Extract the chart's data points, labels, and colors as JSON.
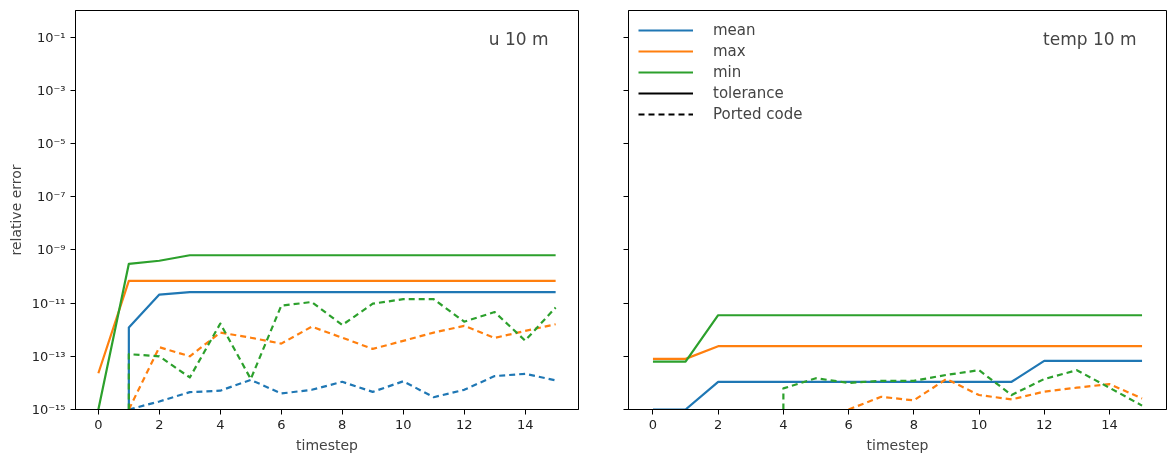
{
  "chart_data": [
    {
      "type": "line",
      "title": "u 10 m",
      "xlabel": "timestep",
      "ylabel": "relative error",
      "log": "y",
      "grid": false,
      "legend": false,
      "xlim": [
        -0.75,
        15.75
      ],
      "xticks": [
        0,
        2,
        4,
        6,
        8,
        10,
        12,
        14
      ],
      "ylim": [
        1e-15,
        1
      ],
      "yticks": [
        {
          "value": 1e-15,
          "label": "10⁻¹⁵"
        },
        {
          "value": 1e-13,
          "label": "10⁻¹³"
        },
        {
          "value": 1e-11,
          "label": "10⁻¹¹"
        },
        {
          "value": 1e-09,
          "label": "10⁻⁹"
        },
        {
          "value": 1e-07,
          "label": "10⁻⁷"
        },
        {
          "value": 1e-05,
          "label": "10⁻⁵"
        },
        {
          "value": 0.001,
          "label": "10⁻³"
        },
        {
          "value": 0.1,
          "label": "10⁻¹"
        }
      ],
      "series": [
        {
          "color": "#1f77b4",
          "line_style": "solid",
          "x": [
            1,
            1,
            2,
            3,
            4,
            5,
            6,
            7,
            8,
            9,
            10,
            11,
            12,
            13,
            14,
            15
          ],
          "values": [
            1e-15,
            1.2e-12,
            2.1e-11,
            2.6e-11,
            2.6e-11,
            2.6e-11,
            2.6e-11,
            2.6e-11,
            2.6e-11,
            2.6e-11,
            2.6e-11,
            2.6e-11,
            2.6e-11,
            2.6e-11,
            2.6e-11,
            2.6e-11
          ]
        },
        {
          "color": "#ff7f0e",
          "line_style": "solid",
          "x": [
            0,
            1,
            2,
            3,
            4,
            5,
            6,
            7,
            8,
            9,
            10,
            11,
            12,
            13,
            14,
            15
          ],
          "values": [
            2.3e-14,
            6.8e-11,
            6.8e-11,
            6.8e-11,
            6.8e-11,
            6.8e-11,
            6.8e-11,
            6.8e-11,
            6.8e-11,
            6.8e-11,
            6.8e-11,
            6.8e-11,
            6.8e-11,
            6.8e-11,
            6.8e-11,
            6.8e-11
          ]
        },
        {
          "color": "#2ca02c",
          "line_style": "solid",
          "x": [
            0,
            1,
            2,
            3,
            4,
            5,
            6,
            7,
            8,
            9,
            10,
            11,
            12,
            13,
            14,
            15
          ],
          "values": [
            1e-15,
            3e-10,
            3.9e-10,
            6.3e-10,
            6.3e-10,
            6.3e-10,
            6.3e-10,
            6.3e-10,
            6.3e-10,
            6.3e-10,
            6.3e-10,
            6.3e-10,
            6.3e-10,
            6.3e-10,
            6.3e-10,
            6.3e-10
          ]
        },
        {
          "color": "#1f77b4",
          "line_style": "dashed",
          "x": [
            1,
            2,
            3,
            4,
            5,
            6,
            7,
            8,
            9,
            10,
            11,
            12,
            13,
            14,
            15
          ],
          "values": [
            1e-15,
            2e-15,
            4.5e-15,
            5.1e-15,
            1.3e-14,
            4e-15,
            5.5e-15,
            1.1e-14,
            4.6e-15,
            1.15e-14,
            2.9e-15,
            5.5e-15,
            1.8e-14,
            2.2e-14,
            1.25e-14
          ]
        },
        {
          "color": "#ff7f0e",
          "line_style": "dashed",
          "x": [
            1,
            2,
            3,
            4,
            5,
            6,
            7,
            8,
            9,
            10,
            11,
            12,
            13,
            14,
            15
          ],
          "values": [
            1e-15,
            2.2e-13,
            1e-13,
            7.8e-13,
            5e-13,
            3e-13,
            1.3e-12,
            5e-13,
            1.9e-13,
            3.8e-13,
            7.8e-13,
            1.4e-12,
            4.9e-13,
            9e-13,
            1.6e-12
          ]
        },
        {
          "color": "#2ca02c",
          "line_style": "dashed",
          "x": [
            1,
            1,
            2,
            3,
            4,
            5,
            6,
            7,
            8,
            9,
            10,
            11,
            12,
            13,
            14,
            15
          ],
          "values": [
            1e-15,
            1.2e-13,
            1e-13,
            1.6e-14,
            1.7e-12,
            1.4e-14,
            8e-12,
            1.1e-11,
            1.5e-12,
            9.5e-12,
            1.4e-11,
            1.4e-11,
            2e-12,
            4.6e-12,
            3.9e-13,
            6.8e-12
          ]
        }
      ]
    },
    {
      "type": "line",
      "title": "temp 10 m",
      "xlabel": "timestep",
      "log": "y",
      "grid": false,
      "legend": "top left",
      "tick_labels": "x",
      "xlim": [
        -0.75,
        15.75
      ],
      "xticks": [
        0,
        2,
        4,
        6,
        8,
        10,
        12,
        14
      ],
      "ylim": [
        1e-15,
        1
      ],
      "yticks": [
        {
          "value": 1e-15,
          "label": null
        },
        {
          "value": 1e-13,
          "label": null
        },
        {
          "value": 1e-11,
          "label": null
        },
        {
          "value": 1e-09,
          "label": null
        },
        {
          "value": 1e-07,
          "label": null
        },
        {
          "value": 1e-05,
          "label": null
        },
        {
          "value": 0.001,
          "label": null
        },
        {
          "value": 0.1,
          "label": null
        }
      ],
      "annotations": [
        "tolerance",
        "Ported code"
      ],
      "series": [
        {
          "name": "mean",
          "color": "#1f77b4",
          "line_style": "solid",
          "x": [
            0,
            1,
            2,
            3,
            4,
            5,
            6,
            7,
            8,
            9,
            10,
            11,
            12,
            13,
            14,
            15
          ],
          "values": [
            1e-15,
            1e-15,
            1.1e-14,
            1.1e-14,
            1.1e-14,
            1.1e-14,
            1.1e-14,
            1.1e-14,
            1.1e-14,
            1.1e-14,
            1.1e-14,
            1.1e-14,
            6.7e-14,
            6.7e-14,
            6.7e-14,
            6.7e-14
          ]
        },
        {
          "name": "max",
          "color": "#ff7f0e",
          "line_style": "solid",
          "x": [
            0,
            1,
            2,
            3,
            4,
            5,
            6,
            7,
            8,
            9,
            10,
            11,
            12,
            13,
            14,
            15
          ],
          "values": [
            8e-14,
            8e-14,
            2.4e-13,
            2.4e-13,
            2.4e-13,
            2.4e-13,
            2.4e-13,
            2.4e-13,
            2.4e-13,
            2.4e-13,
            2.4e-13,
            2.4e-13,
            2.4e-13,
            2.4e-13,
            2.4e-13,
            2.4e-13
          ]
        },
        {
          "name": "min",
          "color": "#2ca02c",
          "line_style": "solid",
          "x": [
            0,
            1,
            2,
            3,
            4,
            5,
            6,
            7,
            8,
            9,
            10,
            11,
            12,
            13,
            14,
            15
          ],
          "values": [
            6.3e-14,
            6.3e-14,
            3.5e-12,
            3.5e-12,
            3.5e-12,
            3.5e-12,
            3.5e-12,
            3.5e-12,
            3.5e-12,
            3.5e-12,
            3.5e-12,
            3.5e-12,
            3.5e-12,
            3.5e-12,
            3.5e-12,
            3.5e-12
          ]
        },
        {
          "color": "#ff7f0e",
          "line_style": "dashed",
          "x": [
            6,
            7,
            8,
            9,
            10,
            11,
            12,
            13,
            14,
            15
          ],
          "values": [
            1e-15,
            3e-15,
            2.2e-15,
            1.4e-14,
            3.5e-15,
            2.4e-15,
            4.7e-15,
            6.6e-15,
            9e-15,
            2.6e-15
          ]
        },
        {
          "color": "#2ca02c",
          "line_style": "dashed",
          "x": [
            4,
            4,
            5,
            6,
            7,
            8,
            9,
            10,
            11,
            12,
            13,
            14,
            15
          ],
          "values": [
            1e-15,
            6.2e-15,
            1.5e-14,
            1e-14,
            1.2e-14,
            1.2e-14,
            2e-14,
            3e-14,
            3.5e-15,
            1.4e-14,
            3e-14,
            6.6e-15,
            1.4e-15
          ]
        }
      ]
    }
  ]
}
